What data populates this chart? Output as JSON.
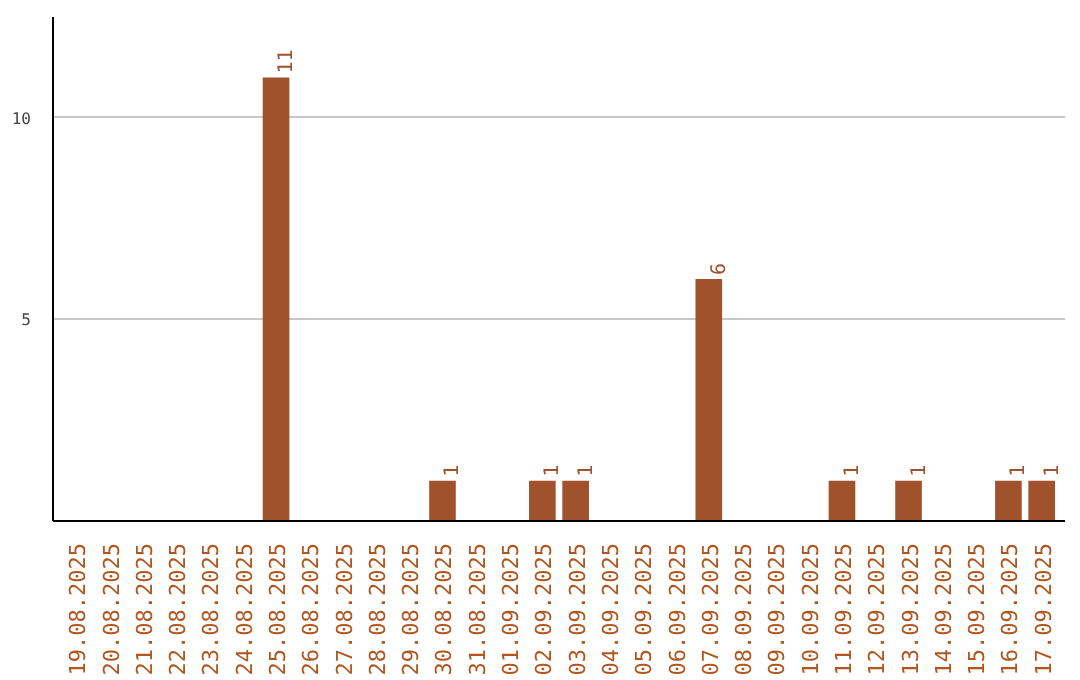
{
  "chart_data": {
    "type": "bar",
    "categories": [
      "19.08.2025",
      "20.08.2025",
      "21.08.2025",
      "22.08.2025",
      "23.08.2025",
      "24.08.2025",
      "25.08.2025",
      "26.08.2025",
      "27.08.2025",
      "28.08.2025",
      "29.08.2025",
      "30.08.2025",
      "31.08.2025",
      "01.09.2025",
      "02.09.2025",
      "03.09.2025",
      "04.09.2025",
      "05.09.2025",
      "06.09.2025",
      "07.09.2025",
      "08.09.2025",
      "09.09.2025",
      "10.09.2025",
      "11.09.2025",
      "12.09.2025",
      "13.09.2025",
      "14.09.2025",
      "15.09.2025",
      "16.09.2025",
      "17.09.2025"
    ],
    "values": [
      0,
      0,
      0,
      0,
      0,
      0,
      11,
      0,
      0,
      0,
      0,
      1,
      0,
      0,
      1,
      1,
      0,
      0,
      0,
      6,
      0,
      0,
      0,
      1,
      0,
      1,
      0,
      0,
      1,
      1
    ],
    "value_labels": [
      null,
      null,
      null,
      null,
      null,
      null,
      "11",
      null,
      null,
      null,
      null,
      "1",
      null,
      null,
      "1",
      "1",
      null,
      null,
      null,
      "6",
      null,
      null,
      null,
      "1",
      null,
      "1",
      null,
      null,
      "1",
      "1"
    ],
    "color": "#a0522d",
    "ylim": [
      0,
      12.5
    ],
    "yticks": [
      5,
      10
    ],
    "grid": "y"
  }
}
